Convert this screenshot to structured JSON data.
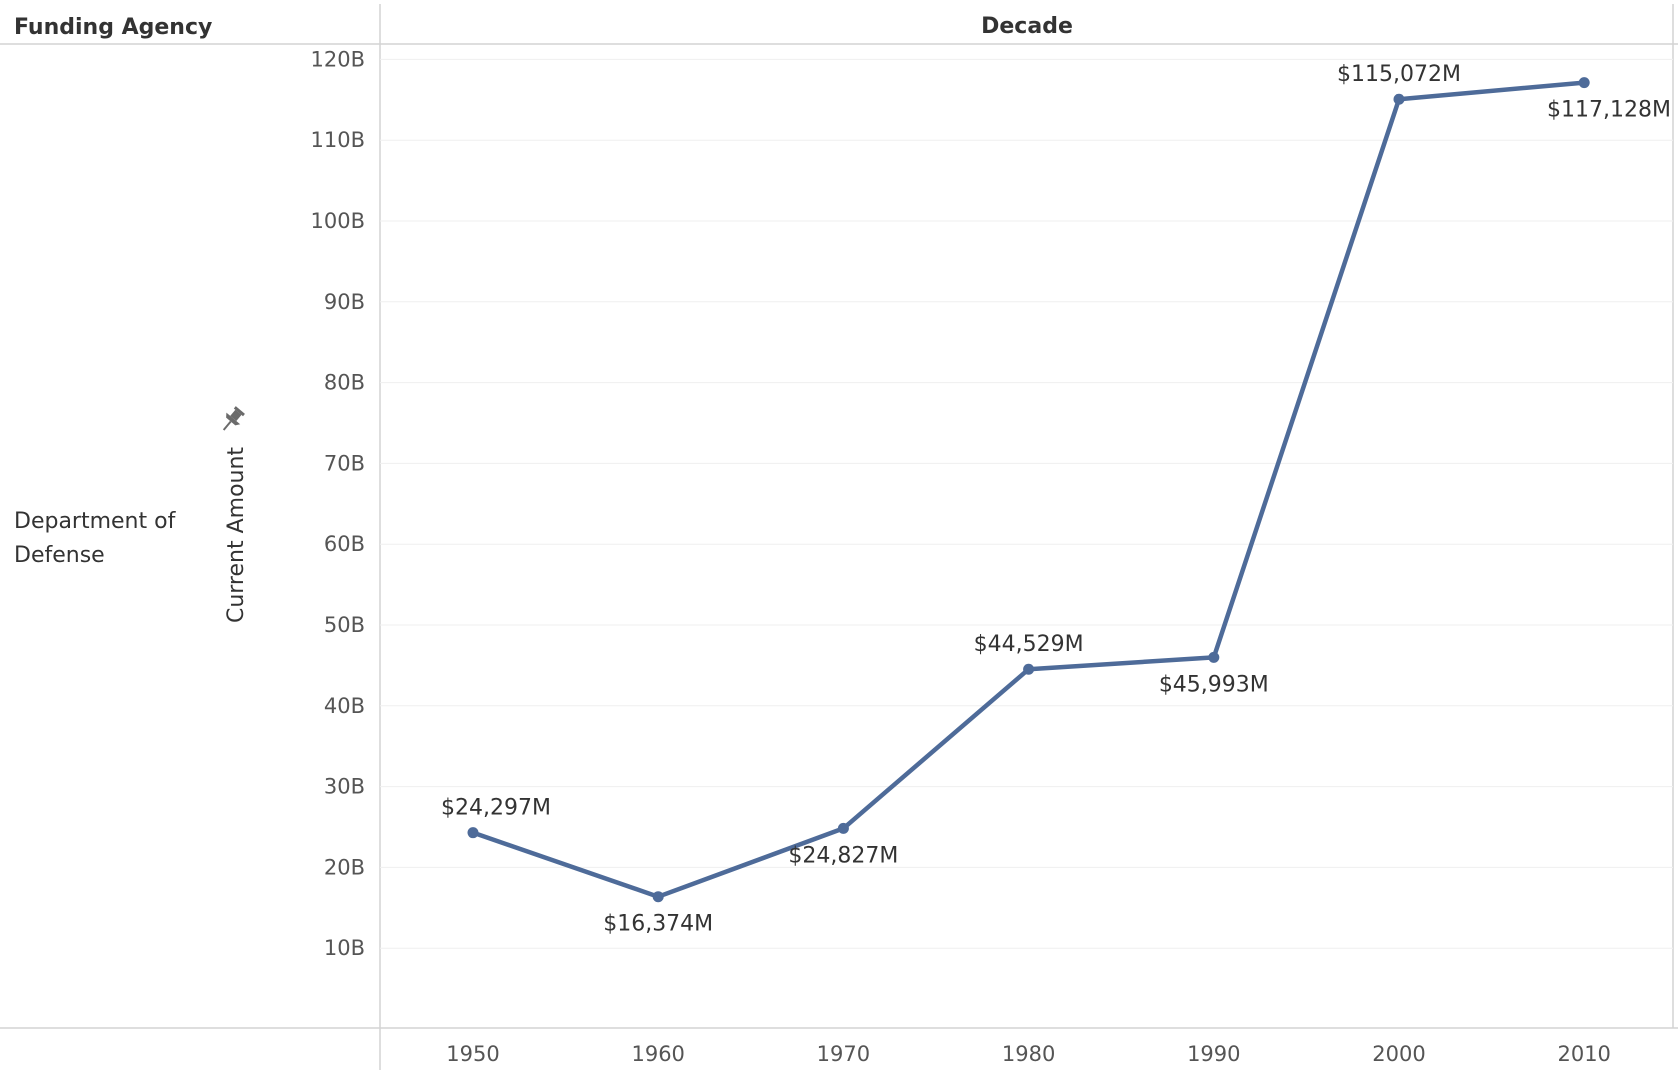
{
  "headers": {
    "row_dimension": "Funding Agency",
    "column_dimension": "Decade"
  },
  "row_label_lines": [
    "Department of",
    "Defense"
  ],
  "pin_icon": "pin-icon",
  "chart_data": {
    "type": "line",
    "ylabel": "Current Amount",
    "xlabel": "",
    "categories": [
      "1950",
      "1960",
      "1970",
      "1980",
      "1990",
      "2000",
      "2010"
    ],
    "series": [
      {
        "values": [
          24297,
          16374,
          24827,
          44529,
          45993,
          115072,
          117128
        ],
        "data_labels": [
          "$24,297M",
          "$16,374M",
          "$24,827M",
          "$44,529M",
          "$45,993M",
          "$115,072M",
          "$117,128M"
        ],
        "label_position": [
          "above",
          "below",
          "below",
          "above",
          "below",
          "above",
          "below"
        ],
        "color": "#4e6b99"
      }
    ],
    "y_unit": "millions of dollars",
    "yticks": [
      10000,
      20000,
      30000,
      40000,
      50000,
      60000,
      70000,
      80000,
      90000,
      100000,
      110000,
      120000
    ],
    "ytick_labels": [
      "10B",
      "20B",
      "30B",
      "40B",
      "50B",
      "60B",
      "70B",
      "80B",
      "90B",
      "100B",
      "110B",
      "120B"
    ],
    "ylim": [
      0,
      122000
    ],
    "grid": true,
    "legend": "none"
  }
}
